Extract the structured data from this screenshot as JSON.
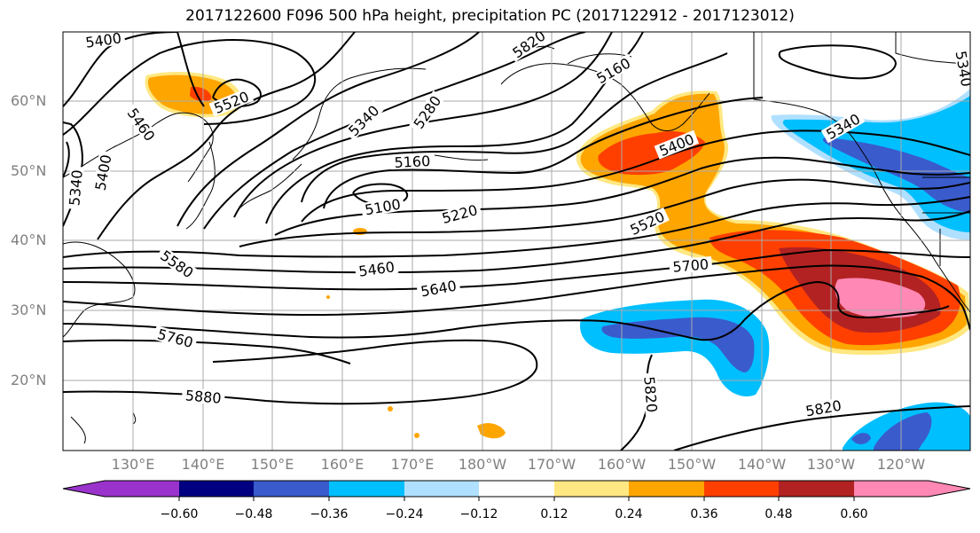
{
  "title": "2017122600 F096 500 hPa height, precipitation PC (2017122912 - 2017123012)",
  "latitude_labels": [
    "60°N",
    "50°N",
    "40°N",
    "30°N",
    "20°N"
  ],
  "longitude_labels": [
    "130°E",
    "140°E",
    "150°E",
    "160°E",
    "170°E",
    "180°W",
    "170°W",
    "160°W",
    "150°W",
    "140°W",
    "130°W",
    "120°W"
  ],
  "colorbar": {
    "ticks": [
      "−0.60",
      "−0.48",
      "−0.36",
      "−0.24",
      "−0.12",
      "0.12",
      "0.24",
      "0.36",
      "0.48",
      "0.60"
    ],
    "colors": [
      "#9933cc",
      "#000080",
      "#3a5bcc",
      "#00bfff",
      "#b0e0ff",
      "#ffffff",
      "#ffe882",
      "#ffa500",
      "#ff3f00",
      "#b22222",
      "#ff88b4",
      "#ff88b4"
    ]
  },
  "contour_labels": {
    "c5400_nw": "5400",
    "c5820_n": "5820",
    "c5160_n": "5160",
    "c5520_top": "5520",
    "c5460_w": "5460",
    "c5340_w": "5340",
    "c5400_w": "5400",
    "c5340_ne": "5340",
    "c5340_ne2": "5340",
    "c5340_mid": "5340",
    "c5280": "5280",
    "c5160": "5160",
    "c5100": "5100",
    "c5220": "5220",
    "c5400_e": "5400",
    "c5520_e": "5520",
    "c5580": "5580",
    "c5460": "5460",
    "c5640": "5640",
    "c5700": "5700",
    "c5760": "5760",
    "c5880": "5880",
    "c5820_s": "5820",
    "c5820_se": "5820"
  },
  "colors": {
    "contour": "#000000",
    "grid": "#aaaaaa",
    "coast": "#000000"
  }
}
